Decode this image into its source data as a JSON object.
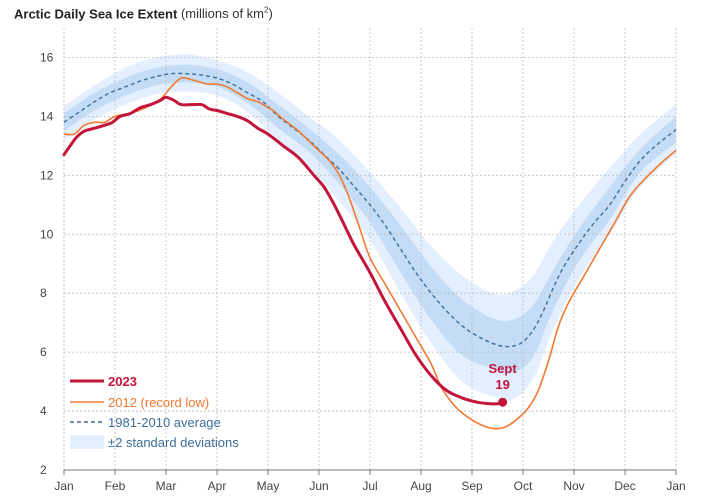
{
  "chart_data": {
    "type": "line",
    "title": "Arctic Daily Sea Ice Extent",
    "subtitle_prefix": "(millions of km",
    "subtitle_sup": "2",
    "subtitle_suffix": ")",
    "xlabel": "",
    "ylabel": "",
    "ylim": [
      2,
      17
    ],
    "yticks": [
      2,
      4,
      6,
      8,
      10,
      12,
      14,
      16
    ],
    "x_domain": [
      0,
      12
    ],
    "xtick_labels": [
      "Jan",
      "Feb",
      "Mar",
      "Apr",
      "May",
      "Jun",
      "Jul",
      "Aug",
      "Sep",
      "Oct",
      "Nov",
      "Dec",
      "Jan"
    ],
    "grid": true,
    "legend_position": "bottom-left",
    "colors": {
      "y2023": "#c3153a",
      "y2012": "#f07a33",
      "average": "#3d6e9a",
      "band_outer": "#e3efff",
      "band_inner": "#c4dcf6"
    },
    "series": [
      {
        "name": "2023",
        "x": [
          0,
          0.1,
          0.25,
          0.4,
          0.6,
          0.8,
          0.95,
          1.1,
          1.3,
          1.5,
          1.7,
          1.9,
          2.0,
          2.15,
          2.3,
          2.5,
          2.7,
          2.85,
          3.0,
          3.2,
          3.4,
          3.6,
          3.8,
          4.0,
          4.3,
          4.6,
          4.9,
          5.1,
          5.3,
          5.5,
          5.7,
          6.0,
          6.3,
          6.6,
          6.9,
          7.2,
          7.5,
          7.8,
          8.1,
          8.35,
          8.5,
          8.6
        ],
        "y": [
          12.7,
          12.95,
          13.3,
          13.5,
          13.6,
          13.7,
          13.8,
          14.0,
          14.1,
          14.3,
          14.4,
          14.55,
          14.65,
          14.55,
          14.4,
          14.4,
          14.4,
          14.25,
          14.2,
          14.1,
          14.0,
          13.85,
          13.6,
          13.4,
          13.0,
          12.6,
          12.0,
          11.6,
          11.0,
          10.3,
          9.6,
          8.7,
          7.7,
          6.8,
          5.9,
          5.2,
          4.7,
          4.45,
          4.3,
          4.25,
          4.25,
          4.3
        ]
      },
      {
        "name": "2012 (record low)",
        "x": [
          0,
          0.2,
          0.4,
          0.6,
          0.8,
          1.0,
          1.3,
          1.6,
          1.9,
          2.1,
          2.3,
          2.5,
          2.8,
          3.0,
          3.2,
          3.4,
          3.6,
          3.8,
          3.95,
          4.1,
          4.3,
          4.6,
          4.9,
          5.2,
          5.4,
          5.6,
          5.8,
          6.0,
          6.3,
          6.6,
          6.9,
          7.2,
          7.4,
          7.7,
          8.0,
          8.3,
          8.5,
          8.7,
          8.9,
          9.1,
          9.3,
          9.5,
          9.7,
          9.9,
          10.2,
          10.5,
          10.8,
          11.1,
          11.4,
          11.7,
          12.0
        ],
        "y": [
          13.4,
          13.4,
          13.7,
          13.8,
          13.8,
          14.0,
          14.1,
          14.3,
          14.6,
          15.0,
          15.3,
          15.25,
          15.1,
          15.1,
          15.0,
          14.8,
          14.6,
          14.5,
          14.35,
          14.2,
          13.9,
          13.5,
          13.0,
          12.5,
          12.0,
          11.2,
          10.2,
          9.2,
          8.3,
          7.4,
          6.5,
          5.6,
          4.8,
          4.1,
          3.7,
          3.45,
          3.4,
          3.5,
          3.75,
          4.1,
          4.7,
          5.7,
          6.9,
          7.7,
          8.6,
          9.5,
          10.4,
          11.3,
          11.9,
          12.4,
          12.85
        ]
      },
      {
        "name": "1981-2010 average",
        "x": [
          0,
          0.3,
          0.6,
          0.9,
          1.2,
          1.5,
          1.8,
          2.1,
          2.4,
          2.7,
          3.0,
          3.3,
          3.6,
          3.9,
          4.2,
          4.5,
          4.8,
          5.1,
          5.4,
          5.7,
          6.0,
          6.3,
          6.6,
          6.9,
          7.2,
          7.5,
          7.8,
          8.1,
          8.4,
          8.6,
          8.8,
          9.0,
          9.2,
          9.4,
          9.6,
          9.8,
          10.1,
          10.4,
          10.7,
          11.0,
          11.3,
          11.6,
          12.0
        ],
        "y": [
          13.8,
          14.15,
          14.5,
          14.8,
          15.0,
          15.2,
          15.35,
          15.45,
          15.45,
          15.4,
          15.3,
          15.1,
          14.8,
          14.5,
          14.0,
          13.6,
          13.2,
          12.7,
          12.2,
          11.6,
          11.0,
          10.3,
          9.5,
          8.7,
          8.0,
          7.4,
          6.9,
          6.55,
          6.3,
          6.2,
          6.2,
          6.35,
          6.75,
          7.4,
          8.2,
          8.9,
          9.7,
          10.4,
          11.0,
          11.8,
          12.5,
          13.0,
          13.55
        ]
      }
    ],
    "bands": {
      "std_multiple": 2,
      "x": [
        0,
        0.6,
        1.2,
        1.8,
        2.4,
        3.0,
        3.6,
        4.2,
        4.8,
        5.4,
        6.0,
        6.6,
        7.2,
        7.8,
        8.4,
        8.8,
        9.2,
        9.6,
        10.1,
        10.7,
        11.3,
        12.0
      ],
      "outer_upper": [
        14.35,
        15.05,
        15.65,
        16.0,
        16.1,
        15.9,
        15.5,
        14.8,
        14.0,
        13.2,
        12.1,
        10.9,
        9.6,
        8.6,
        8.0,
        8.05,
        8.6,
        9.8,
        11.0,
        12.25,
        13.4,
        14.4
      ],
      "inner_upper": [
        14.1,
        14.8,
        15.3,
        15.65,
        15.75,
        15.6,
        15.15,
        14.4,
        13.6,
        12.7,
        11.6,
        10.3,
        8.9,
        7.8,
        7.15,
        7.1,
        7.6,
        8.8,
        10.2,
        11.6,
        12.9,
        14.0
      ],
      "inner_lower": [
        13.5,
        14.2,
        14.7,
        15.05,
        15.15,
        15.0,
        14.45,
        13.6,
        12.8,
        11.7,
        10.4,
        8.7,
        7.1,
        5.9,
        5.45,
        5.3,
        5.85,
        7.45,
        9.1,
        10.5,
        12.1,
        13.1
      ],
      "outer_lower": [
        13.2,
        13.9,
        14.4,
        14.75,
        14.85,
        14.7,
        14.15,
        13.2,
        12.3,
        11.1,
        9.8,
        8.0,
        6.3,
        5.0,
        4.5,
        4.4,
        5.1,
        6.8,
        8.5,
        10.0,
        11.6,
        12.7
      ]
    },
    "legend": [
      {
        "key": "y2023",
        "label": "2023"
      },
      {
        "key": "y2012",
        "label": "2012 (record low)"
      },
      {
        "key": "average",
        "label": "1981-2010 average"
      },
      {
        "key": "band",
        "label": "±2 standard deviations"
      }
    ],
    "annotation": {
      "line1": "Sept",
      "line2": "19",
      "x": 8.6,
      "y": 4.3
    }
  }
}
